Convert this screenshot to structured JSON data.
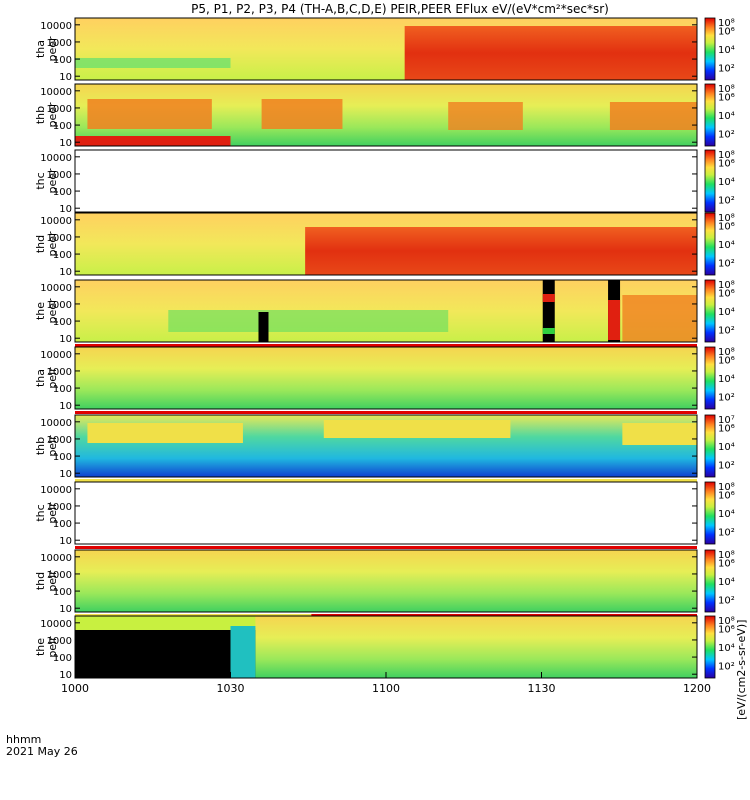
{
  "title": "P5, P1, P2, P3, P4 (TH-A,B,C,D,E) PEIR,PEER EFlux eV/(eV*cm²*sec*sr)",
  "colorbar_units": "[eV/(cm2-s-sr-eV)]",
  "xaxis": {
    "ticks": [
      "1000",
      "1030",
      "1100",
      "1130",
      "1200"
    ],
    "label_line1": "hhmm",
    "label_line2": "2021 May 26"
  },
  "colors": {
    "background": "#ffffff",
    "axis": "#000000",
    "high": "#e00000",
    "mid": "#f4e040",
    "low": "#30d040",
    "lowest": "#0020c0"
  },
  "chart_data": {
    "type": "heatmap",
    "x_range_hhmm": [
      "1000",
      "1200"
    ],
    "y_scale": "log",
    "yticks": [
      "10",
      "100",
      "1000",
      "10000"
    ],
    "colorbar_ticks": [
      "10²",
      "10⁴",
      "10⁶"
    ],
    "panels": [
      {
        "name": "tha peer",
        "label_top": "tha",
        "label_bottom": "peer",
        "cbar_top": "10⁸",
        "status": "data"
      },
      {
        "name": "thb peer",
        "label_top": "thb",
        "label_bottom": "peer",
        "cbar_top": "10⁸",
        "status": "data"
      },
      {
        "name": "thc peer",
        "label_top": "thc",
        "label_bottom": "peer",
        "cbar_top": "10⁸",
        "status": "empty"
      },
      {
        "name": "thd peer",
        "label_top": "thd",
        "label_bottom": "peer",
        "cbar_top": "10⁸",
        "status": "data"
      },
      {
        "name": "the peer",
        "label_top": "the",
        "label_bottom": "peer",
        "cbar_top": "10⁸",
        "status": "data"
      },
      {
        "name": "tha peir",
        "label_top": "tha",
        "label_bottom": "peir",
        "cbar_top": "10⁸",
        "status": "data"
      },
      {
        "name": "thb peir",
        "label_top": "thb",
        "label_bottom": "peir",
        "cbar_top": "10⁷",
        "status": "data"
      },
      {
        "name": "thc peir",
        "label_top": "thc",
        "label_bottom": "peir",
        "cbar_top": "10⁸",
        "status": "empty"
      },
      {
        "name": "thd peir",
        "label_top": "thd",
        "label_bottom": "peir",
        "cbar_top": "10⁸",
        "status": "data"
      },
      {
        "name": "the peir",
        "label_top": "the",
        "label_bottom": "peir",
        "cbar_top": "10⁸",
        "status": "data"
      }
    ]
  }
}
